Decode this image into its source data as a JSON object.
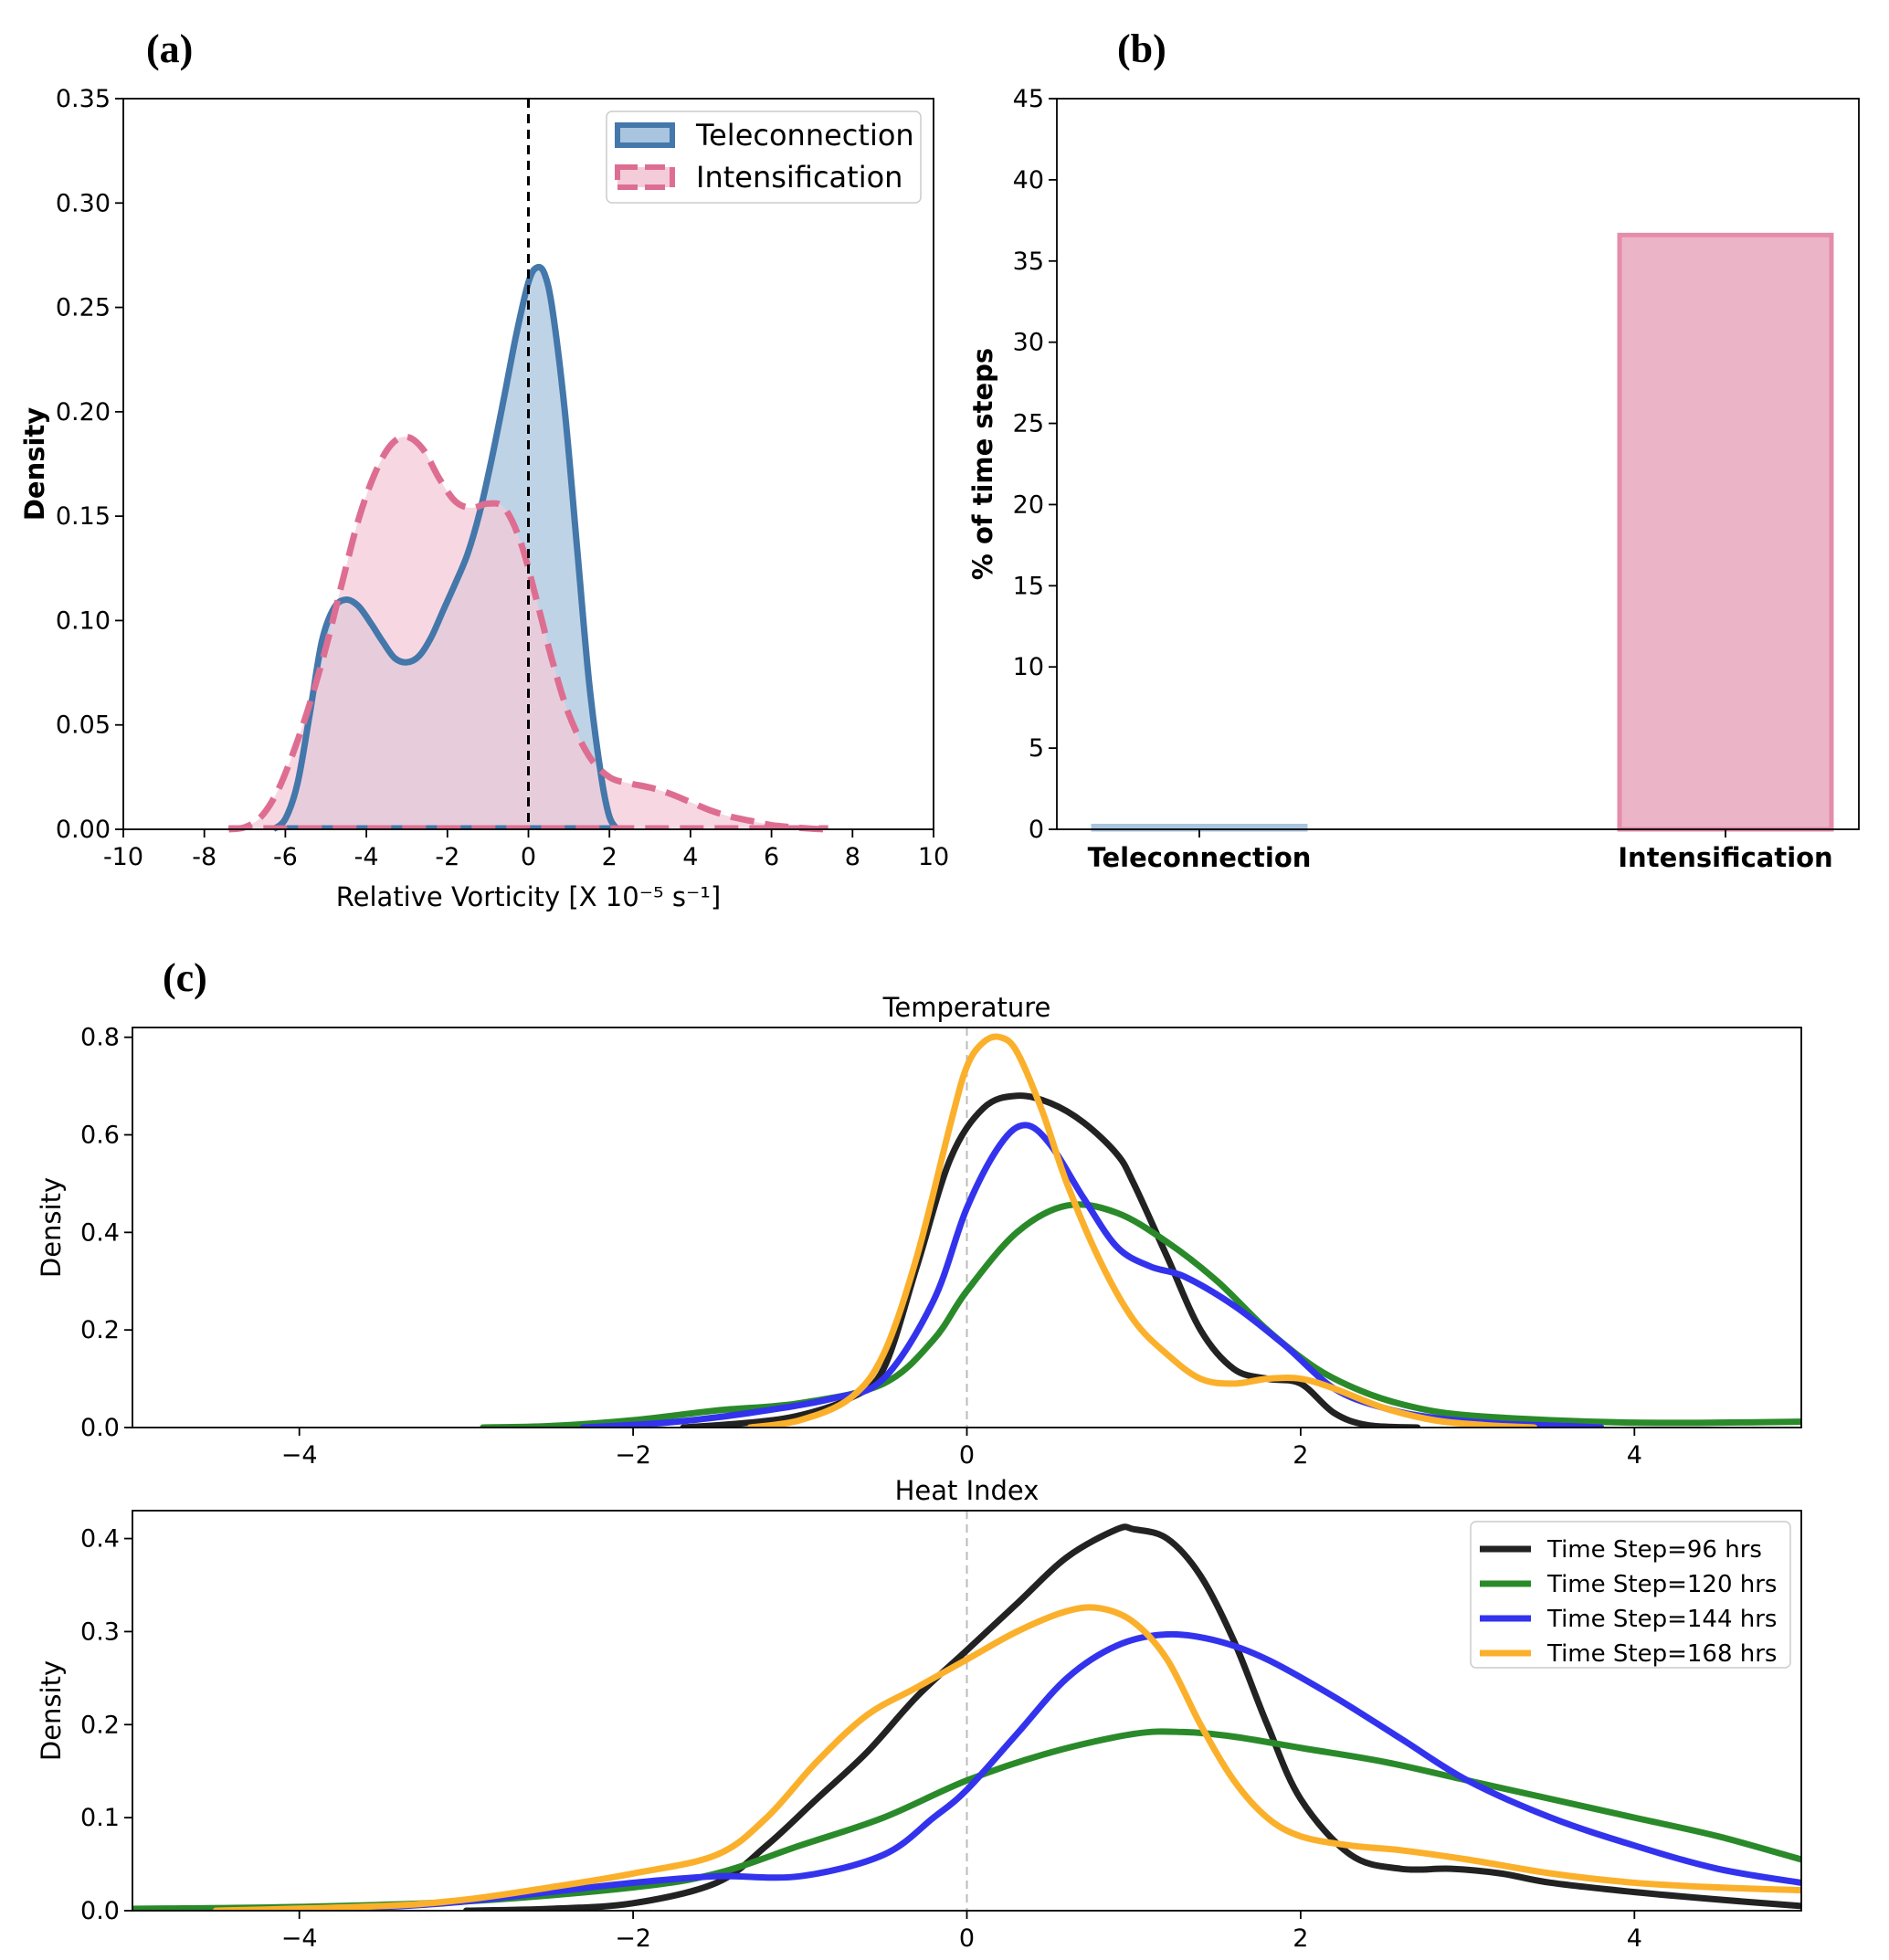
{
  "panel_labels": {
    "a": "(a)",
    "b": "(b)",
    "c": "(c)"
  },
  "chart_data": [
    {
      "id": "a",
      "type": "area",
      "xlabel": "Relative Vorticity [X 10⁻⁵ s⁻¹]",
      "ylabel": "Density",
      "xlim": [
        -10,
        10
      ],
      "ylim": [
        0,
        0.35
      ],
      "xticks": [
        "-10",
        "-8",
        "-6",
        "-4",
        "-2",
        "0",
        "2",
        "4",
        "6",
        "8",
        "10"
      ],
      "yticks": [
        "0.00",
        "0.05",
        "0.10",
        "0.15",
        "0.20",
        "0.25",
        "0.30",
        "0.35"
      ],
      "vline": 0,
      "legend": "top-right",
      "series": [
        {
          "name": "Teleconnection",
          "color": "#4477aa",
          "fill": "#a9c4df",
          "dash": false,
          "x": [
            -6.3,
            -6.0,
            -5.7,
            -5.4,
            -5.1,
            -4.8,
            -4.5,
            -4.2,
            -3.9,
            -3.6,
            -3.3,
            -3.0,
            -2.7,
            -2.4,
            -2.1,
            -1.8,
            -1.5,
            -1.2,
            -0.9,
            -0.6,
            -0.3,
            0.0,
            0.2,
            0.4,
            0.6,
            0.9,
            1.2,
            1.5,
            1.8,
            2.0,
            2.2
          ],
          "y": [
            0.0,
            0.005,
            0.022,
            0.055,
            0.09,
            0.106,
            0.11,
            0.107,
            0.099,
            0.09,
            0.082,
            0.08,
            0.083,
            0.092,
            0.105,
            0.118,
            0.132,
            0.152,
            0.178,
            0.207,
            0.237,
            0.262,
            0.269,
            0.266,
            0.248,
            0.2,
            0.135,
            0.07,
            0.025,
            0.006,
            0.0
          ]
        },
        {
          "name": "Intensification",
          "color": "#dd6e92",
          "fill": "#f4cbd8",
          "dash": true,
          "x": [
            -7.4,
            -7.0,
            -6.6,
            -6.2,
            -5.8,
            -5.4,
            -5.0,
            -4.6,
            -4.2,
            -3.8,
            -3.4,
            -3.0,
            -2.6,
            -2.2,
            -1.8,
            -1.4,
            -1.0,
            -0.6,
            -0.2,
            0.2,
            0.6,
            1.0,
            1.5,
            2.0,
            2.5,
            3.0,
            3.5,
            4.0,
            4.5,
            5.0,
            5.5,
            6.0,
            6.5,
            7.0,
            7.4
          ],
          "y": [
            0.0,
            0.001,
            0.006,
            0.018,
            0.037,
            0.06,
            0.087,
            0.118,
            0.148,
            0.17,
            0.184,
            0.188,
            0.182,
            0.168,
            0.157,
            0.154,
            0.156,
            0.154,
            0.138,
            0.11,
            0.08,
            0.055,
            0.035,
            0.025,
            0.022,
            0.02,
            0.017,
            0.013,
            0.009,
            0.006,
            0.004,
            0.002,
            0.001,
            0.0003,
            0.0
          ]
        }
      ]
    },
    {
      "id": "b",
      "type": "bar",
      "ylabel": "% of time steps",
      "ylim": [
        0,
        45
      ],
      "yticks": [
        "0",
        "5",
        "10",
        "15",
        "20",
        "25",
        "30",
        "35",
        "40",
        "45"
      ],
      "categories": [
        "Teleconnection",
        "Intensification"
      ],
      "values": [
        0.2,
        36.6
      ],
      "colors": [
        "#a9c4df",
        "#ecb5c7"
      ],
      "edge_colors": [
        "#a9c4df",
        "#e48ca9"
      ]
    },
    {
      "id": "c1",
      "type": "line",
      "title": "Temperature",
      "ylabel": "Density",
      "xlim": [
        -5,
        5
      ],
      "ylim": [
        0,
        0.82
      ],
      "xticks": [
        "−4",
        "−2",
        "0",
        "2",
        "4"
      ],
      "yticks": [
        "0.0",
        "0.2",
        "0.4",
        "0.6",
        "0.8"
      ],
      "vline": 0,
      "series": [
        {
          "name": "Time Step=96 hrs",
          "color": "#222222",
          "x": [
            -1.7,
            -1.3,
            -1.0,
            -0.7,
            -0.5,
            -0.3,
            -0.1,
            0.1,
            0.3,
            0.5,
            0.7,
            0.9,
            1.0,
            1.2,
            1.4,
            1.6,
            1.8,
            2.0,
            2.2,
            2.4,
            2.7
          ],
          "y": [
            0.0,
            0.01,
            0.025,
            0.06,
            0.12,
            0.33,
            0.55,
            0.655,
            0.68,
            0.665,
            0.625,
            0.56,
            0.5,
            0.35,
            0.2,
            0.12,
            0.1,
            0.09,
            0.03,
            0.005,
            0.0
          ]
        },
        {
          "name": "Time Step=120 hrs",
          "color": "#2a8a2a",
          "x": [
            -2.9,
            -2.5,
            -2.0,
            -1.5,
            -1.0,
            -0.5,
            -0.2,
            0.0,
            0.3,
            0.6,
            0.9,
            1.2,
            1.5,
            1.8,
            2.1,
            2.4,
            2.7,
            3.0,
            3.5,
            4.0,
            4.5,
            5.0
          ],
          "y": [
            0.0,
            0.003,
            0.015,
            0.035,
            0.05,
            0.09,
            0.18,
            0.28,
            0.4,
            0.455,
            0.44,
            0.38,
            0.3,
            0.2,
            0.12,
            0.07,
            0.04,
            0.025,
            0.015,
            0.01,
            0.01,
            0.012
          ]
        },
        {
          "name": "Time Step=144 hrs",
          "color": "#3333ee",
          "x": [
            -2.3,
            -1.8,
            -1.3,
            -0.8,
            -0.5,
            -0.2,
            0.0,
            0.2,
            0.35,
            0.5,
            0.7,
            0.9,
            1.1,
            1.3,
            1.6,
            1.9,
            2.2,
            2.5,
            2.8,
            3.2,
            3.6,
            3.8
          ],
          "y": [
            0.0,
            0.01,
            0.03,
            0.06,
            0.1,
            0.26,
            0.45,
            0.58,
            0.62,
            0.58,
            0.47,
            0.37,
            0.33,
            0.31,
            0.25,
            0.17,
            0.08,
            0.04,
            0.02,
            0.008,
            0.003,
            0.0
          ]
        },
        {
          "name": "Time Step=168 hrs",
          "color": "#fbb02b",
          "x": [
            -1.3,
            -1.0,
            -0.7,
            -0.5,
            -0.3,
            -0.1,
            0.0,
            0.1,
            0.2,
            0.3,
            0.45,
            0.6,
            0.8,
            1.0,
            1.2,
            1.4,
            1.6,
            1.8,
            2.0,
            2.2,
            2.5,
            2.8,
            3.1,
            3.4
          ],
          "y": [
            0.0,
            0.015,
            0.06,
            0.15,
            0.35,
            0.62,
            0.74,
            0.79,
            0.8,
            0.77,
            0.65,
            0.5,
            0.34,
            0.22,
            0.15,
            0.1,
            0.09,
            0.1,
            0.1,
            0.08,
            0.04,
            0.015,
            0.005,
            0.0
          ]
        }
      ]
    },
    {
      "id": "c2",
      "type": "line",
      "title": "Heat Index",
      "ylabel": "Density",
      "xlim": [
        -5,
        5
      ],
      "ylim": [
        0,
        0.43
      ],
      "xticks": [
        "−4",
        "−2",
        "0",
        "2",
        "4"
      ],
      "yticks": [
        "0.0",
        "0.1",
        "0.2",
        "0.3",
        "0.4"
      ],
      "vline": 0,
      "legend": "top-right",
      "series": [
        {
          "name": "Time Step=96 hrs",
          "color": "#222222",
          "x": [
            -3.0,
            -2.5,
            -2.0,
            -1.5,
            -1.2,
            -0.9,
            -0.6,
            -0.3,
            0.0,
            0.3,
            0.6,
            0.9,
            1.0,
            1.2,
            1.4,
            1.6,
            1.8,
            2.0,
            2.3,
            2.6,
            2.9,
            3.2,
            3.5,
            4.0,
            4.5,
            5.0
          ],
          "y": [
            0.0,
            0.002,
            0.008,
            0.03,
            0.07,
            0.12,
            0.17,
            0.23,
            0.28,
            0.33,
            0.38,
            0.41,
            0.41,
            0.4,
            0.36,
            0.29,
            0.2,
            0.12,
            0.06,
            0.045,
            0.045,
            0.04,
            0.03,
            0.02,
            0.012,
            0.005
          ]
        },
        {
          "name": "Time Step=120 hrs",
          "color": "#2a8a2a",
          "x": [
            -5.0,
            -4.0,
            -3.0,
            -2.0,
            -1.5,
            -1.0,
            -0.5,
            0.0,
            0.5,
            1.0,
            1.3,
            1.6,
            2.0,
            2.5,
            3.0,
            3.5,
            4.0,
            4.5,
            5.0
          ],
          "y": [
            0.002,
            0.004,
            0.01,
            0.025,
            0.04,
            0.07,
            0.1,
            0.14,
            0.17,
            0.19,
            0.192,
            0.187,
            0.175,
            0.16,
            0.14,
            0.12,
            0.1,
            0.08,
            0.055
          ]
        },
        {
          "name": "Time Step=144 hrs",
          "color": "#3333ee",
          "x": [
            -4.3,
            -3.5,
            -3.0,
            -2.5,
            -2.0,
            -1.5,
            -1.0,
            -0.5,
            -0.2,
            0.0,
            0.3,
            0.6,
            0.9,
            1.2,
            1.5,
            1.8,
            2.2,
            2.6,
            3.0,
            3.5,
            4.0,
            4.5,
            5.0
          ],
          "y": [
            0.0,
            0.004,
            0.01,
            0.02,
            0.03,
            0.037,
            0.037,
            0.06,
            0.1,
            0.13,
            0.19,
            0.25,
            0.285,
            0.297,
            0.29,
            0.27,
            0.23,
            0.185,
            0.14,
            0.1,
            0.07,
            0.045,
            0.03
          ]
        },
        {
          "name": "Time Step=168 hrs",
          "color": "#fbb02b",
          "x": [
            -4.5,
            -3.5,
            -3.0,
            -2.5,
            -2.0,
            -1.5,
            -1.2,
            -0.9,
            -0.6,
            -0.3,
            0.0,
            0.3,
            0.6,
            0.8,
            1.0,
            1.2,
            1.4,
            1.6,
            1.8,
            2.0,
            2.3,
            2.6,
            3.0,
            3.5,
            4.0,
            4.5,
            5.0
          ],
          "y": [
            0.0,
            0.005,
            0.012,
            0.025,
            0.04,
            0.06,
            0.1,
            0.16,
            0.21,
            0.24,
            0.27,
            0.3,
            0.322,
            0.325,
            0.31,
            0.27,
            0.2,
            0.14,
            0.1,
            0.08,
            0.07,
            0.065,
            0.055,
            0.04,
            0.03,
            0.025,
            0.022
          ]
        }
      ]
    }
  ]
}
